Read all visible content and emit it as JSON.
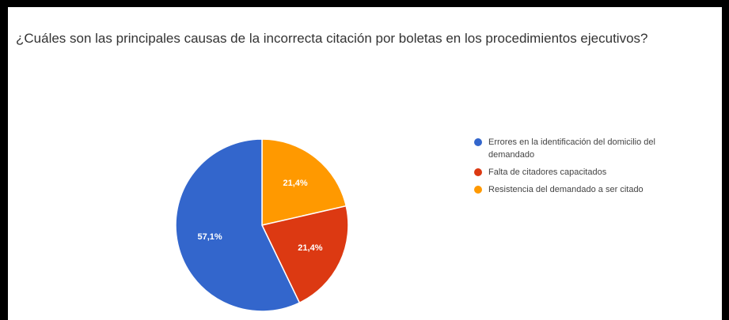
{
  "chart_data": {
    "type": "pie",
    "title": "¿Cuáles son las principales causas de la incorrecta citación por boletas en los procedimientos ejecutivos?",
    "legend_position": "right",
    "slices": [
      {
        "label": "Errores en la identificación del domicilio del demandado",
        "value": 57.1,
        "display": "57,1%",
        "color": "#3366cc"
      },
      {
        "label": "Falta de citadores capacitados",
        "value": 21.4,
        "display": "21,4%",
        "color": "#dc3912"
      },
      {
        "label": "Resistencia del demandado a ser citado",
        "value": 21.4,
        "display": "21,4%",
        "color": "#ff9900"
      }
    ]
  }
}
